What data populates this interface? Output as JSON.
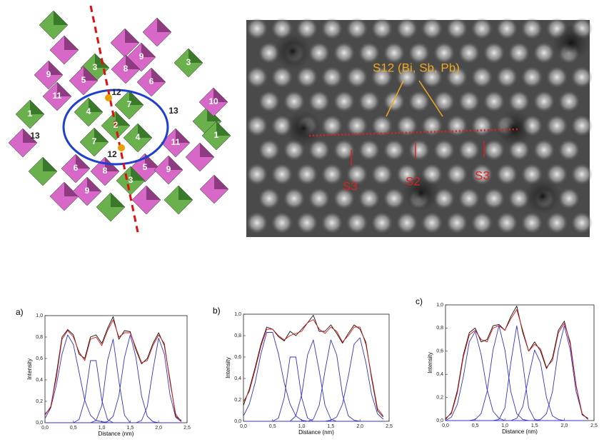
{
  "structure": {
    "labels": [
      "3",
      "9",
      "8",
      "9",
      "5",
      "12",
      "6",
      "3",
      "11",
      "1",
      "4",
      "7",
      "2",
      "13",
      "10",
      "13",
      "4",
      "7",
      "12",
      "11",
      "1",
      "6",
      "8",
      "5",
      "9",
      "9",
      "3"
    ]
  },
  "stem_image": {
    "annotation": "S12 (Bi, Sb, Pb)",
    "sites": [
      "S3",
      "S2",
      "S3"
    ]
  },
  "chart_data": [
    {
      "type": "line",
      "label": "a)",
      "ylabel": "Intensity",
      "xlabel": "Distance (nm)",
      "xlim": [
        0,
        2.5
      ],
      "ylim": [
        0,
        1
      ],
      "xticks": [
        {
          "value": 0,
          "label": "0,0"
        },
        {
          "value": 0.5,
          "label": "0,5"
        },
        {
          "value": 1,
          "label": "1,0"
        },
        {
          "value": 1.5,
          "label": "1,5"
        },
        {
          "value": 2,
          "label": "2,0"
        },
        {
          "value": 2.5,
          "label": "2,5"
        }
      ],
      "yticks": [
        {
          "value": 0,
          "label": "0,0"
        },
        {
          "value": 0.2,
          "label": "0,2"
        },
        {
          "value": 0.4,
          "label": "0,4"
        },
        {
          "value": 0.6,
          "label": "0,6"
        },
        {
          "value": 0.8,
          "label": "0,8"
        },
        {
          "value": 1,
          "label": "1,0"
        }
      ],
      "x": [
        0,
        0.1,
        0.2,
        0.3,
        0.4,
        0.5,
        0.6,
        0.7,
        0.8,
        0.9,
        1.0,
        1.1,
        1.2,
        1.3,
        1.4,
        1.5,
        1.6,
        1.7,
        1.8,
        1.9,
        2.0,
        2.1,
        2.2,
        2.3,
        2.4
      ],
      "series": [
        {
          "color": "#3333cc",
          "values": [
            0.04,
            0.14,
            0.35,
            0.64,
            0.82,
            0.73,
            0.47,
            0.21,
            0.07,
            0.02,
            0.01,
            0,
            0,
            0,
            0,
            0,
            0,
            0,
            0,
            0,
            0,
            0,
            0,
            0,
            0
          ]
        },
        {
          "color": "#3333cc",
          "values": [
            0,
            0,
            0,
            0,
            0,
            0,
            0.03,
            0.21,
            0.58,
            0.58,
            0.21,
            0.03,
            0,
            0,
            0,
            0,
            0,
            0,
            0,
            0,
            0,
            0,
            0,
            0,
            0
          ]
        },
        {
          "color": "#3333cc",
          "values": [
            0,
            0,
            0,
            0,
            0,
            0,
            0,
            0,
            0,
            0.02,
            0.16,
            0.58,
            0.78,
            0.39,
            0.07,
            0,
            0,
            0,
            0,
            0,
            0,
            0,
            0,
            0,
            0
          ]
        },
        {
          "color": "#3333cc",
          "values": [
            0,
            0,
            0,
            0,
            0,
            0,
            0,
            0,
            0,
            0,
            0,
            0.01,
            0.06,
            0.25,
            0.61,
            0.82,
            0.61,
            0.25,
            0.06,
            0.01,
            0,
            0,
            0,
            0,
            0
          ]
        },
        {
          "color": "#3333cc",
          "values": [
            0,
            0,
            0,
            0,
            0,
            0,
            0,
            0,
            0,
            0,
            0,
            0,
            0,
            0,
            0,
            0,
            0,
            0.02,
            0.15,
            0.49,
            0.79,
            0.64,
            0.26,
            0.05,
            0.01
          ]
        },
        {
          "color": "#111111",
          "values": [
            0.08,
            0.14,
            0.45,
            0.8,
            0.87,
            0.82,
            0.64,
            0.6,
            0.8,
            0.82,
            0.74,
            0.88,
            0.99,
            0.78,
            0.86,
            0.85,
            0.68,
            0.55,
            0.6,
            0.74,
            0.84,
            0.72,
            0.4,
            0.06,
            0.02
          ]
        },
        {
          "color": "#dd1111",
          "values": [
            0.07,
            0.15,
            0.42,
            0.78,
            0.86,
            0.8,
            0.66,
            0.58,
            0.78,
            0.8,
            0.72,
            0.86,
            0.96,
            0.8,
            0.84,
            0.84,
            0.7,
            0.56,
            0.58,
            0.72,
            0.82,
            0.74,
            0.38,
            0.08,
            0.01
          ]
        }
      ]
    },
    {
      "type": "line",
      "label": "b)",
      "ylabel": "Intensity",
      "xlabel": "Distance (nm)",
      "xlim": [
        0,
        2.5
      ],
      "ylim": [
        0,
        1
      ],
      "xticks": [
        {
          "value": 0,
          "label": "0,0"
        },
        {
          "value": 0.5,
          "label": "0,5"
        },
        {
          "value": 1,
          "label": "1,0"
        },
        {
          "value": 1.5,
          "label": "1,5"
        },
        {
          "value": 2,
          "label": "2,0"
        },
        {
          "value": 2.5,
          "label": "2,5"
        }
      ],
      "yticks": [
        {
          "value": 0,
          "label": "0,0"
        },
        {
          "value": 0.2,
          "label": "0,2"
        },
        {
          "value": 0.4,
          "label": "0,4"
        },
        {
          "value": 0.6,
          "label": "0,6"
        },
        {
          "value": 0.8,
          "label": "0,8"
        },
        {
          "value": 1,
          "label": "1,0"
        }
      ],
      "x": [
        0,
        0.1,
        0.2,
        0.3,
        0.4,
        0.5,
        0.6,
        0.7,
        0.8,
        0.9,
        1.0,
        1.1,
        1.2,
        1.3,
        1.4,
        1.5,
        1.6,
        1.7,
        1.8,
        1.9,
        2.0,
        2.1,
        2.2,
        2.3,
        2.4
      ],
      "series": [
        {
          "color": "#3333cc",
          "values": [
            0.05,
            0.16,
            0.36,
            0.63,
            0.83,
            0.83,
            0.63,
            0.36,
            0.16,
            0.05,
            0.01,
            0,
            0,
            0,
            0,
            0,
            0,
            0,
            0,
            0,
            0,
            0,
            0,
            0,
            0
          ]
        },
        {
          "color": "#3333cc",
          "values": [
            0,
            0,
            0,
            0,
            0,
            0,
            0.03,
            0.22,
            0.6,
            0.6,
            0.22,
            0.03,
            0,
            0,
            0,
            0,
            0,
            0,
            0,
            0,
            0,
            0,
            0,
            0,
            0
          ]
        },
        {
          "color": "#3333cc",
          "values": [
            0,
            0,
            0,
            0,
            0,
            0,
            0,
            0,
            0,
            0.05,
            0.25,
            0.62,
            0.76,
            0.47,
            0.15,
            0.02,
            0,
            0,
            0,
            0,
            0,
            0,
            0,
            0,
            0
          ]
        },
        {
          "color": "#3333cc",
          "values": [
            0,
            0,
            0,
            0,
            0,
            0,
            0,
            0,
            0,
            0,
            0,
            0,
            0.02,
            0.15,
            0.47,
            0.76,
            0.62,
            0.25,
            0.05,
            0.01,
            0,
            0,
            0,
            0,
            0
          ]
        },
        {
          "color": "#3333cc",
          "values": [
            0,
            0,
            0,
            0,
            0,
            0,
            0,
            0,
            0,
            0,
            0,
            0,
            0,
            0,
            0,
            0.01,
            0.04,
            0.16,
            0.42,
            0.72,
            0.78,
            0.55,
            0.25,
            0.07,
            0.02
          ]
        },
        {
          "color": "#111111",
          "values": [
            0.15,
            0.3,
            0.5,
            0.72,
            0.88,
            0.86,
            0.79,
            0.75,
            0.84,
            0.8,
            0.86,
            0.92,
            0.99,
            0.84,
            0.84,
            0.9,
            0.82,
            0.73,
            0.82,
            0.9,
            0.86,
            0.74,
            0.4,
            0.1,
            0.04
          ]
        },
        {
          "color": "#dd1111",
          "values": [
            0.18,
            0.28,
            0.48,
            0.7,
            0.86,
            0.86,
            0.8,
            0.76,
            0.8,
            0.82,
            0.84,
            0.92,
            0.95,
            0.86,
            0.82,
            0.88,
            0.84,
            0.74,
            0.8,
            0.88,
            0.88,
            0.72,
            0.42,
            0.12,
            0.05
          ]
        }
      ]
    },
    {
      "type": "line",
      "label": "c)",
      "ylabel": "Intensity",
      "xlabel": "Distance (nm)",
      "xlim": [
        0,
        2.5
      ],
      "ylim": [
        0,
        1
      ],
      "xticks": [
        {
          "value": 0,
          "label": "0,0"
        },
        {
          "value": 0.5,
          "label": "0,5"
        },
        {
          "value": 1,
          "label": "1,0"
        },
        {
          "value": 1.5,
          "label": "1,5"
        },
        {
          "value": 2,
          "label": "2,0"
        },
        {
          "value": 2.5,
          "label": "2,5"
        }
      ],
      "yticks": [
        {
          "value": 0,
          "label": "0,0"
        },
        {
          "value": 0.2,
          "label": "0,2"
        },
        {
          "value": 0.4,
          "label": "0,4"
        },
        {
          "value": 0.6,
          "label": "0,6"
        },
        {
          "value": 0.8,
          "label": "0,8"
        },
        {
          "value": 1,
          "label": "1,0"
        }
      ],
      "x": [
        0,
        0.1,
        0.2,
        0.3,
        0.4,
        0.5,
        0.6,
        0.7,
        0.8,
        0.9,
        1.0,
        1.1,
        1.2,
        1.3,
        1.4,
        1.5,
        1.6,
        1.7,
        1.8,
        1.9,
        2.0,
        2.1,
        2.2,
        2.3,
        2.4
      ],
      "series": [
        {
          "color": "#3333cc",
          "values": [
            0,
            0.03,
            0.14,
            0.38,
            0.68,
            0.77,
            0.57,
            0.27,
            0.08,
            0.02,
            0,
            0,
            0,
            0,
            0,
            0,
            0,
            0,
            0,
            0,
            0,
            0,
            0,
            0,
            0
          ]
        },
        {
          "color": "#3333cc",
          "values": [
            0,
            0,
            0,
            0,
            0,
            0.01,
            0.06,
            0.25,
            0.61,
            0.82,
            0.61,
            0.25,
            0.06,
            0.01,
            0,
            0,
            0,
            0,
            0,
            0,
            0,
            0,
            0,
            0,
            0
          ]
        },
        {
          "color": "#3333cc",
          "values": [
            0,
            0,
            0,
            0,
            0,
            0,
            0,
            0,
            0,
            0.01,
            0.11,
            0.5,
            0.82,
            0.5,
            0.11,
            0.01,
            0,
            0,
            0,
            0,
            0,
            0,
            0,
            0,
            0
          ]
        },
        {
          "color": "#3333cc",
          "values": [
            0,
            0,
            0,
            0,
            0,
            0,
            0,
            0,
            0,
            0,
            0,
            0,
            0.02,
            0.12,
            0.38,
            0.61,
            0.5,
            0.2,
            0.04,
            0.01,
            0,
            0,
            0,
            0,
            0
          ]
        },
        {
          "color": "#3333cc",
          "values": [
            0,
            0,
            0,
            0,
            0,
            0,
            0,
            0,
            0,
            0,
            0,
            0,
            0,
            0,
            0,
            0,
            0.01,
            0.06,
            0.25,
            0.61,
            0.82,
            0.61,
            0.25,
            0.06,
            0.01
          ]
        },
        {
          "color": "#111111",
          "values": [
            0.01,
            0.07,
            0.26,
            0.57,
            0.76,
            0.8,
            0.68,
            0.7,
            0.82,
            0.83,
            0.78,
            0.9,
            0.99,
            0.76,
            0.6,
            0.68,
            0.6,
            0.45,
            0.54,
            0.78,
            0.86,
            0.66,
            0.3,
            0.05,
            0.02
          ]
        },
        {
          "color": "#dd1111",
          "values": [
            0.02,
            0.06,
            0.24,
            0.55,
            0.74,
            0.78,
            0.7,
            0.68,
            0.8,
            0.82,
            0.78,
            0.88,
            0.96,
            0.78,
            0.6,
            0.66,
            0.62,
            0.46,
            0.52,
            0.76,
            0.84,
            0.68,
            0.3,
            0.06,
            0.01
          ]
        }
      ]
    }
  ]
}
